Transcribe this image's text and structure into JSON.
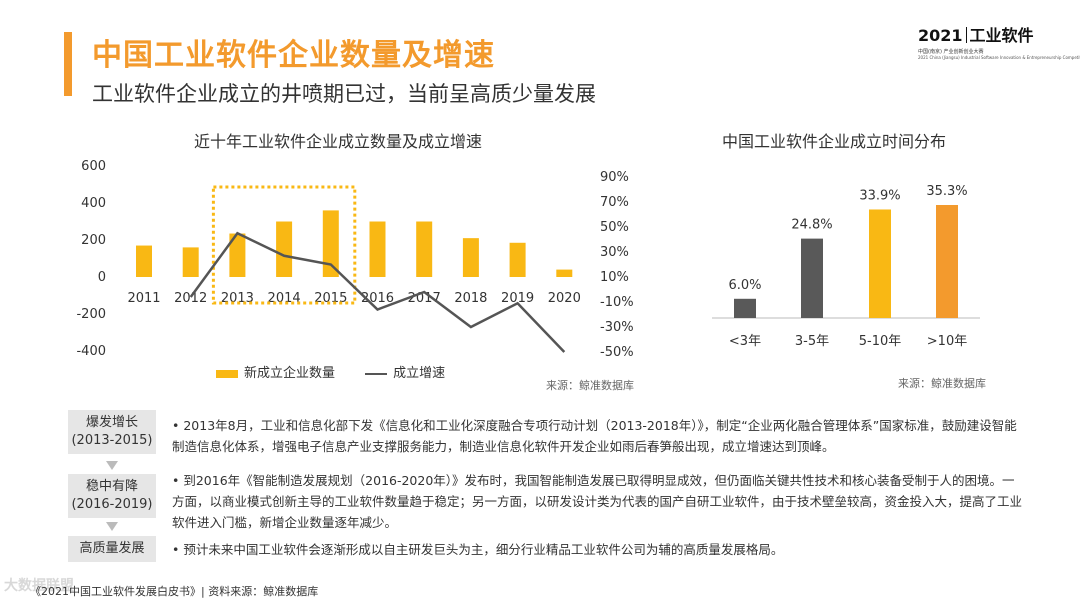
{
  "header": {
    "title": "中国工业软件企业数量及增速",
    "subtitle": "工业软件企业成立的井喷期已过，当前呈高质少量发展"
  },
  "logo": {
    "year": "2021",
    "name": "工业软件",
    "line1": "中国(南京) 产业创新创业大赛",
    "line2": "2021 China (Jiangsu) Industrial Software Innovation & Entrepreneurship Competition"
  },
  "chart_data": [
    {
      "type": "bar",
      "title": "近十年工业软件企业成立数量及成立增速",
      "categories": [
        "2011",
        "2012",
        "2013",
        "2014",
        "2015",
        "2016",
        "2017",
        "2018",
        "2019",
        "2020"
      ],
      "series": [
        {
          "name": "新成立企业数量",
          "axis": "left",
          "values": [
            170,
            160,
            235,
            300,
            360,
            300,
            300,
            210,
            185,
            40
          ]
        },
        {
          "name": "成立增速",
          "type": "line",
          "axis": "right",
          "values": [
            null,
            -6,
            45,
            27,
            20,
            -16,
            -2,
            -30,
            -11,
            -50
          ]
        }
      ],
      "left_axis": {
        "ticks": [
          600,
          400,
          200,
          0,
          -200,
          -400
        ],
        "range": [
          -400,
          600
        ]
      },
      "right_axis": {
        "ticks": [
          "90%",
          "70%",
          "50%",
          "30%",
          "10%",
          "-10%",
          "-30%",
          "-50%"
        ],
        "range": [
          -50,
          90
        ]
      },
      "highlight_categories": [
        "2013",
        "2014",
        "2015"
      ],
      "colors": {
        "bar": "#f9b814",
        "line": "#555555",
        "highlight_box": "#f9b814"
      },
      "legend": "bottom",
      "source": "来源：鲸准数据库"
    },
    {
      "type": "bar",
      "title": "中国工业软件企业成立时间分布",
      "categories": [
        "<3年",
        "3-5年",
        "5-10年",
        ">10年"
      ],
      "values": [
        6.0,
        24.8,
        33.9,
        35.3
      ],
      "data_labels": [
        "6.0%",
        "24.8%",
        "33.9%",
        "35.3%"
      ],
      "colors": [
        "#595959",
        "#595959",
        "#f9b814",
        "#f39a2d"
      ],
      "source": "来源：鲸准数据库"
    }
  ],
  "stages": [
    {
      "label_line1": "爆发增长",
      "label_line2": "(2013-2015)",
      "text": "• 2013年8月，工业和信息化部下发《信息化和工业化深度融合专项行动计划（2013-2018年）》，制定“企业两化融合管理体系”国家标准，鼓励建设智能制造信息化体系，增强电子信息产业支撑服务能力，制造业信息化软件开发企业如雨后春笋般出现，成立增速达到顶峰。"
    },
    {
      "label_line1": "稳中有降",
      "label_line2": "(2016-2019)",
      "text": "• 到2016年《智能制造发展规划（2016-2020年）》发布时，我国智能制造发展已取得明显成效，但仍面临关键共性技术和核心装备受制于人的困境。一方面，以商业模式创新主导的工业软件数量趋于稳定；另一方面，以研发设计类为代表的国产自研工业软件，由于技术壁垒较高，资金投入大，提高了工业软件进入门槛，新增企业数量逐年减少。"
    },
    {
      "label_line1": "高质量发展",
      "label_line2": "",
      "text": "• 预计未来中国工业软件会逐渐形成以自主研发巨头为主，细分行业精品工业软件公司为辅的高质量发展格局。"
    }
  ],
  "footer": "《2021中国工业软件发展白皮书》| 资料来源：鲸准数据库",
  "watermark": "大数据联盟"
}
